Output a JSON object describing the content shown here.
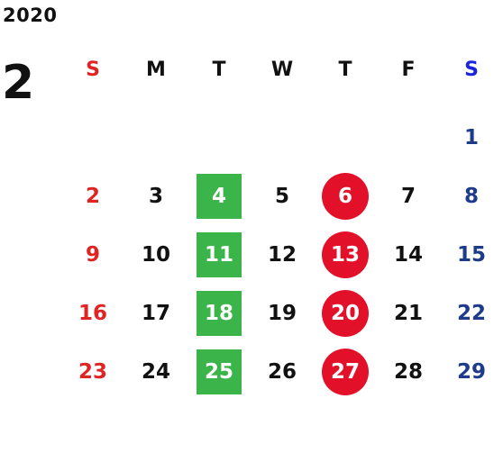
{
  "calendar": {
    "year": "2020",
    "month": "2",
    "colors": {
      "sunday": "#e02424",
      "saturday_header": "#1a24e0",
      "saturday": "#1e3a8a",
      "weekday": "#111111",
      "marked_text": "#ffffff",
      "tuesday_mark": "#3bb54a",
      "thursday_mark": "#e3102a"
    },
    "weekdays": [
      "S",
      "M",
      "T",
      "W",
      "T",
      "F",
      "S"
    ],
    "weeks": [
      [
        {
          "day": "",
          "mark": ""
        },
        {
          "day": "",
          "mark": ""
        },
        {
          "day": "",
          "mark": ""
        },
        {
          "day": "",
          "mark": ""
        },
        {
          "day": "",
          "mark": ""
        },
        {
          "day": "",
          "mark": ""
        },
        {
          "day": "1",
          "mark": ""
        }
      ],
      [
        {
          "day": "2",
          "mark": ""
        },
        {
          "day": "3",
          "mark": ""
        },
        {
          "day": "4",
          "mark": "green-square"
        },
        {
          "day": "5",
          "mark": ""
        },
        {
          "day": "6",
          "mark": "red-circle"
        },
        {
          "day": "7",
          "mark": ""
        },
        {
          "day": "8",
          "mark": ""
        }
      ],
      [
        {
          "day": "9",
          "mark": ""
        },
        {
          "day": "10",
          "mark": ""
        },
        {
          "day": "11",
          "mark": "green-square"
        },
        {
          "day": "12",
          "mark": ""
        },
        {
          "day": "13",
          "mark": "red-circle"
        },
        {
          "day": "14",
          "mark": ""
        },
        {
          "day": "15",
          "mark": ""
        }
      ],
      [
        {
          "day": "16",
          "mark": ""
        },
        {
          "day": "17",
          "mark": ""
        },
        {
          "day": "18",
          "mark": "green-square"
        },
        {
          "day": "19",
          "mark": ""
        },
        {
          "day": "20",
          "mark": "red-circle"
        },
        {
          "day": "21",
          "mark": ""
        },
        {
          "day": "22",
          "mark": ""
        }
      ],
      [
        {
          "day": "23",
          "mark": ""
        },
        {
          "day": "24",
          "mark": ""
        },
        {
          "day": "25",
          "mark": "green-square"
        },
        {
          "day": "26",
          "mark": ""
        },
        {
          "day": "27",
          "mark": "red-circle"
        },
        {
          "day": "28",
          "mark": ""
        },
        {
          "day": "29",
          "mark": ""
        }
      ]
    ]
  }
}
